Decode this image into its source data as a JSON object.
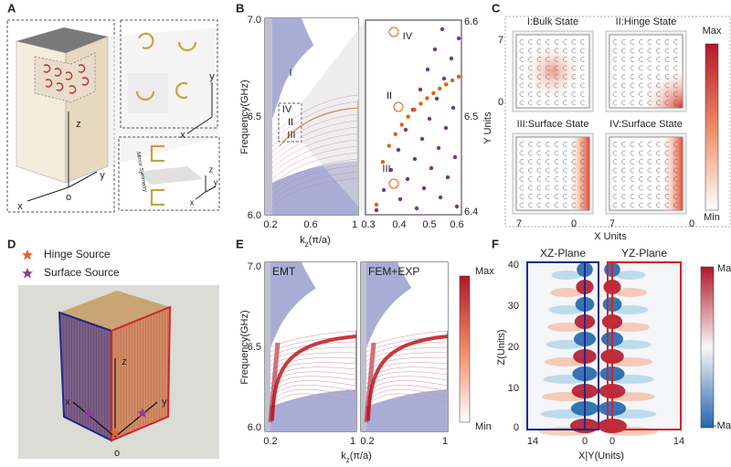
{
  "panels": {
    "A": {
      "label": "A",
      "axes_main": [
        "z",
        "y",
        "x",
        "o"
      ],
      "axes_inset": [
        "y",
        "x"
      ],
      "axes_mirror": [
        "z",
        "y",
        "x"
      ],
      "mirror": "Mirror Symmetry"
    },
    "B": {
      "label": "B",
      "ylabel": "Frequency(GHz)",
      "yticks": [
        "6.0",
        "6.5",
        "7.0"
      ],
      "xticks": [
        "0.2",
        "0.6",
        "1"
      ],
      "zoom_xticks": [
        "0.3",
        "0.4",
        "0.5",
        "0.6"
      ],
      "zoom_yticks": [
        "6.4",
        "6.5",
        "6.6"
      ],
      "states_main": [
        "I",
        "IV",
        "II",
        "III"
      ],
      "states_zoom": [
        "IV",
        "II",
        "III"
      ],
      "xlabel": {
        "base": "k",
        "sub": "z",
        "rest": "(π/a)"
      }
    },
    "C": {
      "label": "C",
      "titles": [
        "I:Bulk State",
        "II:Hinge State",
        "III:Surface State",
        "IV:Surface State"
      ],
      "yticks": [
        "7",
        "0"
      ],
      "xticks": [
        "7",
        "0",
        "7",
        "0"
      ],
      "ylabel": "Y Units",
      "xlabel": "X Units",
      "colorbar": [
        "Max",
        "Min"
      ]
    },
    "D": {
      "label": "D",
      "legend": [
        "Hinge Source",
        "Surface Source"
      ],
      "axes": [
        "z",
        "x",
        "y",
        "o"
      ]
    },
    "E": {
      "label": "E",
      "plots": [
        "EMT",
        "FEM+EXP"
      ],
      "ylabel": "Frequency(GHz)",
      "yticks": [
        "6.0",
        "6.5",
        "7.0"
      ],
      "xticks": [
        "0.2",
        "1",
        "0.2",
        "1"
      ],
      "xlabel": {
        "base": "k",
        "sub": "z",
        "rest": "(π/a)"
      },
      "colorbar": [
        "Max",
        "Min"
      ]
    },
    "F": {
      "label": "F",
      "plots": [
        "XZ-Plane",
        "YZ-Plane"
      ],
      "yticks": [
        "0",
        "10",
        "20",
        "30",
        "40"
      ],
      "xticks": [
        "14",
        "0",
        "0",
        "14"
      ],
      "ylabel": "Z(Units)",
      "xlabel": "X|Y(Units)",
      "colorbar": [
        "Max",
        "-Max"
      ]
    }
  }
}
